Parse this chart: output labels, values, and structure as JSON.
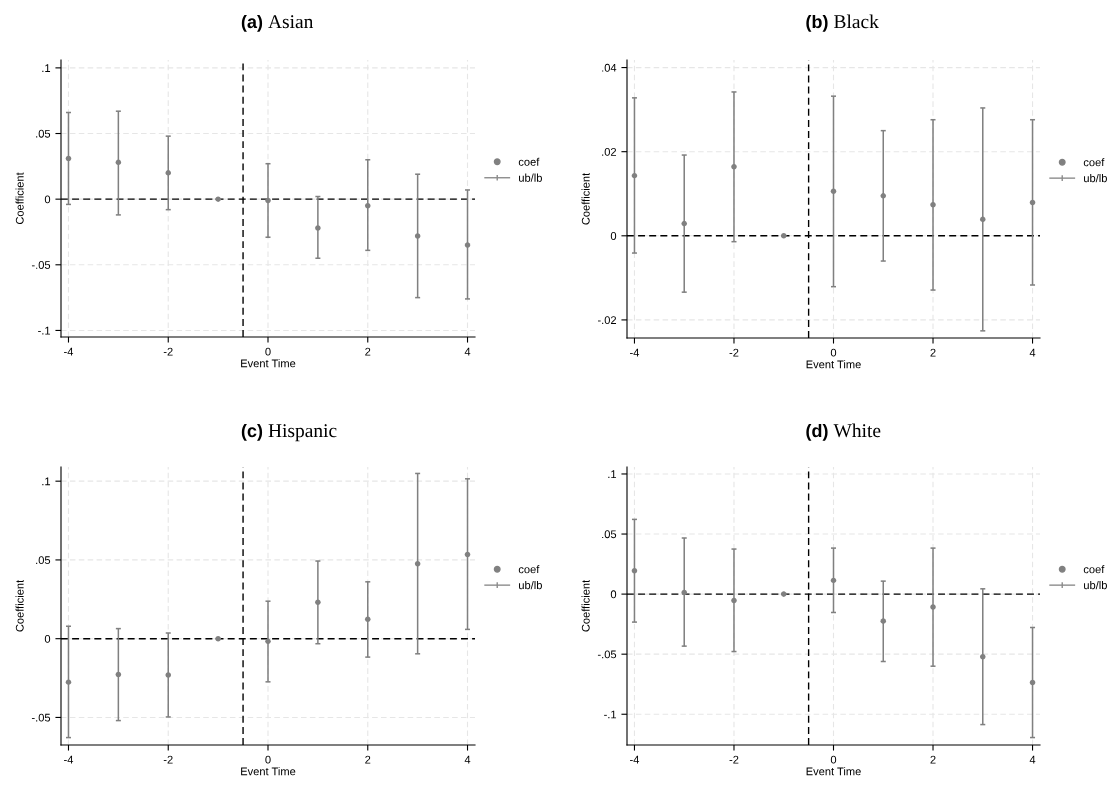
{
  "chart_data": [
    {
      "type": "scatter",
      "title": "(a) Asian",
      "xlabel": "Event Time",
      "ylabel": "Coefficient",
      "annotations": [
        "ub/lb"
      ],
      "x": [
        -4,
        -3,
        -2,
        -1,
        0,
        1,
        2,
        3,
        4
      ],
      "xlim": [
        -4.15,
        4.15
      ],
      "xticks": [
        -4,
        -2,
        0,
        2,
        4
      ],
      "ylim": [
        -0.105,
        0.106
      ],
      "yticks": [
        {
          "value": 0.1,
          "label": ".1"
        },
        {
          "value": 0.05,
          "label": ".05"
        },
        0,
        {
          "value": -0.05,
          "label": "-.05"
        },
        {
          "value": -0.1,
          "label": "-.1"
        }
      ],
      "grid": true,
      "legend": "right",
      "series": [
        {
          "name": "coef",
          "color": "#808080",
          "marker": "circle",
          "values": [
            0.031,
            0.028,
            0.02,
            0,
            -0.001,
            -0.022,
            -0.005,
            -0.028,
            -0.035
          ],
          "errors": [
            [
              -0.004,
              0.066
            ],
            [
              -0.012,
              0.067
            ],
            [
              -0.008,
              0.048
            ],
            [
              0,
              0
            ],
            [
              -0.029,
              0.027
            ],
            [
              -0.045,
              0.002
            ],
            [
              -0.039,
              0.03
            ],
            [
              -0.075,
              0.019
            ],
            [
              -0.076,
              0.007
            ]
          ]
        }
      ],
      "ref_lines": [
        {
          "axis": "y",
          "value": 0,
          "color": "#000000",
          "line_style": "dashed"
        },
        {
          "axis": "x",
          "value": -0.5,
          "color": "#000000",
          "line_style": "dashed"
        }
      ]
    },
    {
      "type": "scatter",
      "title": "(b) Black",
      "xlabel": "Event Time",
      "ylabel": "Coefficient",
      "annotations": [
        "ub/lb"
      ],
      "x": [
        -4,
        -3,
        -2,
        -1,
        0,
        1,
        2,
        3,
        4
      ],
      "xlim": [
        -4.15,
        4.15
      ],
      "xticks": [
        -4,
        -2,
        0,
        2,
        4
      ],
      "ylim": [
        -0.0243,
        0.0418
      ],
      "yticks": [
        {
          "value": 0.04,
          "label": ".04"
        },
        {
          "value": 0.02,
          "label": ".02"
        },
        0,
        {
          "value": -0.02,
          "label": "-.02"
        }
      ],
      "grid": true,
      "legend": "right",
      "series": [
        {
          "name": "coef",
          "color": "#808080",
          "marker": "circle",
          "values": [
            0.0143,
            0.0029,
            0.0164,
            0,
            0.0106,
            0.0095,
            0.0074,
            0.0039,
            0.0079
          ],
          "errors": [
            [
              -0.0041,
              0.0328
            ],
            [
              -0.0134,
              0.0192
            ],
            [
              -0.0014,
              0.0342
            ],
            [
              0,
              0
            ],
            [
              -0.0121,
              0.0332
            ],
            [
              -0.006,
              0.025
            ],
            [
              -0.0129,
              0.0276
            ],
            [
              -0.0226,
              0.0304
            ],
            [
              -0.0117,
              0.0276
            ]
          ]
        }
      ],
      "ref_lines": [
        {
          "axis": "y",
          "value": 0,
          "color": "#000000",
          "line_style": "dashed"
        },
        {
          "axis": "x",
          "value": -0.5,
          "color": "#000000",
          "line_style": "dashed"
        }
      ]
    },
    {
      "type": "scatter",
      "title": "(c) Hispanic",
      "xlabel": "Event Time",
      "ylabel": "Coefficient",
      "annotations": [
        "ub/lb"
      ],
      "x": [
        -4,
        -3,
        -2,
        -1,
        0,
        1,
        2,
        3,
        4
      ],
      "xlim": [
        -4.15,
        4.15
      ],
      "xticks": [
        -4,
        -2,
        0,
        2,
        4
      ],
      "ylim": [
        -0.0675,
        0.109
      ],
      "yticks": [
        {
          "value": 0.1,
          "label": ".1"
        },
        {
          "value": 0.05,
          "label": ".05"
        },
        0,
        {
          "value": -0.05,
          "label": "-.05"
        }
      ],
      "grid": true,
      "legend": "right",
      "series": [
        {
          "name": "coef",
          "color": "#808080",
          "marker": "circle",
          "values": [
            -0.0276,
            -0.0227,
            -0.0231,
            0,
            -0.0017,
            0.0231,
            0.0123,
            0.0476,
            0.0535
          ],
          "errors": [
            [
              -0.0628,
              0.0079
            ],
            [
              -0.052,
              0.0064
            ],
            [
              -0.0497,
              0.0036
            ],
            [
              0,
              0
            ],
            [
              -0.0274,
              0.0238
            ],
            [
              -0.0032,
              0.0493
            ],
            [
              -0.0117,
              0.0361
            ],
            [
              -0.0096,
              0.1049
            ],
            [
              0.0059,
              0.1015
            ]
          ]
        }
      ],
      "ref_lines": [
        {
          "axis": "y",
          "value": 0,
          "color": "#000000",
          "line_style": "dashed"
        },
        {
          "axis": "x",
          "value": -0.5,
          "color": "#000000",
          "line_style": "dashed"
        }
      ]
    },
    {
      "type": "scatter",
      "title": "(d) White",
      "xlabel": "Event Time",
      "ylabel": "Coefficient",
      "annotations": [
        "ub/lb"
      ],
      "x": [
        -4,
        -3,
        -2,
        -1,
        0,
        1,
        2,
        3,
        4
      ],
      "xlim": [
        -4.15,
        4.15
      ],
      "xticks": [
        -4,
        -2,
        0,
        2,
        4
      ],
      "ylim": [
        -0.1256,
        0.1058
      ],
      "yticks": [
        {
          "value": 0.1,
          "label": ".1"
        },
        {
          "value": 0.05,
          "label": ".05"
        },
        0,
        {
          "value": -0.05,
          "label": "-.05"
        },
        {
          "value": -0.1,
          "label": "-.1"
        }
      ],
      "grid": true,
      "legend": "right",
      "series": [
        {
          "name": "coef",
          "color": "#808080",
          "marker": "circle",
          "values": [
            0.0194,
            0.0014,
            -0.0053,
            0,
            0.0114,
            -0.0225,
            -0.0108,
            -0.0522,
            -0.0736
          ],
          "errors": [
            [
              -0.0233,
              0.0622
            ],
            [
              -0.0433,
              0.0467
            ],
            [
              -0.0478,
              0.0375
            ],
            [
              0,
              0
            ],
            [
              -0.0153,
              0.0383
            ],
            [
              -0.0561,
              0.0108
            ],
            [
              -0.06,
              0.0383
            ],
            [
              -0.1086,
              0.0044
            ],
            [
              -0.1194,
              -0.0278
            ]
          ]
        }
      ],
      "ref_lines": [
        {
          "axis": "y",
          "value": 0,
          "color": "#000000",
          "line_style": "dashed"
        },
        {
          "axis": "x",
          "value": -0.5,
          "color": "#000000",
          "line_style": "dashed"
        }
      ]
    }
  ]
}
